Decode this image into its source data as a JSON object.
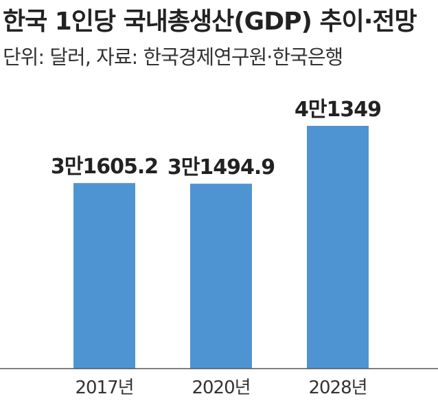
{
  "title": "한국 1인당 국내총생산(GDP) 추이·전망",
  "subtitle": "단위: 달러, 자료: 한국경제연구원·한국은행",
  "colors": {
    "bar": "#4f94d2",
    "text": "#222222"
  },
  "chart_data": {
    "type": "bar",
    "categories": [
      "2017년",
      "2020년",
      "2028년"
    ],
    "values": [
      31605.2,
      31494.9,
      41349
    ],
    "data_labels": [
      "3만1605.2",
      "3만1494.9",
      "4만1349"
    ],
    "ylim": [
      0,
      42000
    ],
    "grid": false,
    "legend": "none"
  }
}
